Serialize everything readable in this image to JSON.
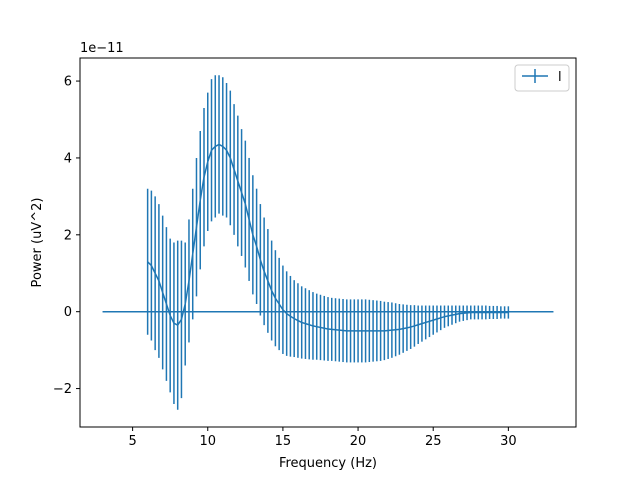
{
  "chart_data": {
    "type": "line",
    "xlabel": "Frequency (Hz)",
    "ylabel": "Power (uV^2)",
    "offset_text": "1e−11",
    "xlim": [
      1.5,
      34.5
    ],
    "ylim": [
      -3.0,
      6.6
    ],
    "xticks": [
      5,
      10,
      15,
      20,
      25,
      30
    ],
    "yticks": [
      -2,
      0,
      2,
      4,
      6
    ],
    "xtick_labels": [
      "5",
      "10",
      "15",
      "20",
      "25",
      "30"
    ],
    "ytick_labels": [
      "−2",
      "0",
      "2",
      "4",
      "6"
    ],
    "legend": {
      "entries": [
        "l"
      ],
      "placement": "top-right"
    },
    "grid": false,
    "color": "#1f77b4",
    "baseline": {
      "x": [
        3,
        33
      ],
      "y": 0
    },
    "series": [
      {
        "name": "l",
        "x": [
          6.0,
          6.25,
          6.5,
          6.75,
          7.0,
          7.25,
          7.5,
          7.75,
          8.0,
          8.25,
          8.5,
          8.75,
          9.0,
          9.25,
          9.5,
          9.75,
          10.0,
          10.25,
          10.5,
          10.75,
          11.0,
          11.25,
          11.5,
          11.75,
          12.0,
          12.25,
          12.5,
          12.75,
          13.0,
          13.25,
          13.5,
          13.75,
          14.0,
          14.25,
          14.5,
          14.75,
          15.0,
          15.25,
          15.5,
          15.75,
          16.0,
          16.25,
          16.5,
          16.75,
          17.0,
          17.25,
          17.5,
          17.75,
          18.0,
          18.25,
          18.5,
          18.75,
          19.0,
          19.25,
          19.5,
          19.75,
          20.0,
          20.25,
          20.5,
          20.75,
          21.0,
          21.25,
          21.5,
          21.75,
          22.0,
          22.25,
          22.5,
          22.75,
          23.0,
          23.25,
          23.5,
          23.75,
          24.0,
          24.25,
          24.5,
          24.75,
          25.0,
          25.25,
          25.5,
          25.75,
          26.0,
          26.25,
          26.5,
          26.75,
          27.0,
          27.25,
          27.5,
          27.75,
          28.0,
          28.25,
          28.5,
          28.75,
          29.0,
          29.25,
          29.5,
          29.75,
          30.0
        ],
        "y": [
          1.3,
          1.2,
          1.0,
          0.8,
          0.5,
          0.2,
          -0.1,
          -0.3,
          -0.35,
          -0.2,
          0.2,
          0.8,
          1.5,
          2.2,
          2.9,
          3.5,
          3.9,
          4.2,
          4.3,
          4.35,
          4.3,
          4.2,
          4.0,
          3.7,
          3.4,
          3.1,
          2.8,
          2.4,
          2.0,
          1.7,
          1.35,
          1.05,
          0.8,
          0.55,
          0.35,
          0.2,
          0.05,
          -0.05,
          -0.12,
          -0.18,
          -0.23,
          -0.28,
          -0.31,
          -0.34,
          -0.37,
          -0.39,
          -0.41,
          -0.43,
          -0.45,
          -0.46,
          -0.47,
          -0.48,
          -0.49,
          -0.5,
          -0.5,
          -0.5,
          -0.5,
          -0.5,
          -0.5,
          -0.5,
          -0.5,
          -0.5,
          -0.5,
          -0.5,
          -0.49,
          -0.48,
          -0.47,
          -0.46,
          -0.44,
          -0.42,
          -0.4,
          -0.37,
          -0.34,
          -0.31,
          -0.28,
          -0.25,
          -0.22,
          -0.19,
          -0.16,
          -0.13,
          -0.11,
          -0.09,
          -0.07,
          -0.05,
          -0.04,
          -0.03,
          -0.02,
          -0.02,
          -0.02,
          -0.02,
          -0.02,
          -0.02,
          -0.02,
          -0.02,
          -0.02,
          -0.02,
          -0.02
        ],
        "err": [
          1.9,
          1.95,
          2.0,
          2.0,
          2.0,
          2.0,
          2.0,
          2.1,
          2.2,
          2.05,
          1.6,
          1.6,
          1.7,
          1.8,
          1.8,
          1.8,
          1.8,
          1.85,
          1.85,
          1.8,
          1.8,
          1.75,
          1.75,
          1.7,
          1.7,
          1.65,
          1.65,
          1.6,
          1.55,
          1.5,
          1.45,
          1.4,
          1.35,
          1.3,
          1.25,
          1.2,
          1.15,
          1.1,
          1.05,
          1.0,
          0.97,
          0.94,
          0.92,
          0.9,
          0.88,
          0.86,
          0.85,
          0.84,
          0.83,
          0.82,
          0.82,
          0.82,
          0.82,
          0.82,
          0.82,
          0.82,
          0.82,
          0.82,
          0.82,
          0.81,
          0.8,
          0.79,
          0.78,
          0.76,
          0.74,
          0.72,
          0.69,
          0.66,
          0.63,
          0.6,
          0.57,
          0.54,
          0.5,
          0.47,
          0.44,
          0.41,
          0.38,
          0.35,
          0.32,
          0.29,
          0.27,
          0.25,
          0.23,
          0.21,
          0.2,
          0.19,
          0.18,
          0.18,
          0.18,
          0.18,
          0.18,
          0.17,
          0.17,
          0.17,
          0.16,
          0.16,
          0.16
        ]
      }
    ]
  }
}
